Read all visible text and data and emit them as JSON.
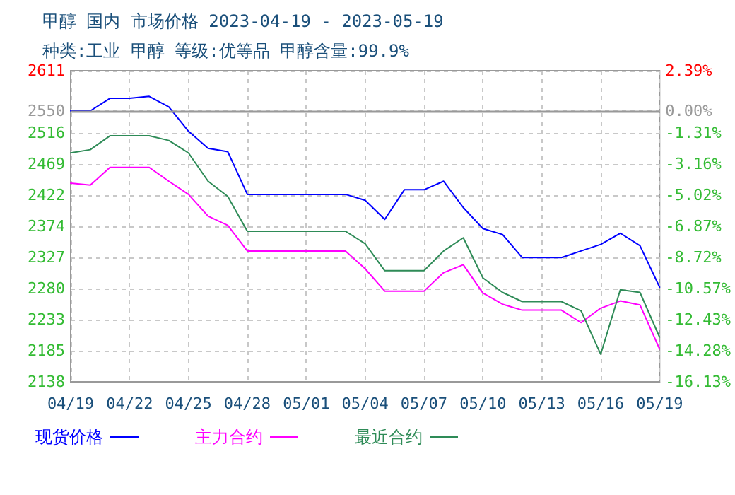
{
  "chart_data": {
    "type": "line",
    "title": "甲醇 国内 市场价格 2023-04-19 - 2023-05-19",
    "subtitle": "种类:工业 甲醇 等级:优等品 甲醇含量:99.9%",
    "x": [
      "2023-04-19",
      "2023-04-20",
      "2023-04-21",
      "2023-04-22",
      "2023-04-23",
      "2023-04-24",
      "2023-04-25",
      "2023-04-26",
      "2023-04-27",
      "2023-04-28",
      "2023-04-29",
      "2023-04-30",
      "2023-05-01",
      "2023-05-02",
      "2023-05-03",
      "2023-05-04",
      "2023-05-05",
      "2023-05-06",
      "2023-05-07",
      "2023-05-08",
      "2023-05-09",
      "2023-05-10",
      "2023-05-11",
      "2023-05-12",
      "2023-05-13",
      "2023-05-14",
      "2023-05-15",
      "2023-05-16",
      "2023-05-17",
      "2023-05-18",
      "2023-05-19"
    ],
    "series": [
      {
        "name": "现货价格",
        "color": "#0000ff",
        "values": [
          2550,
          2550,
          2569,
          2569,
          2572,
          2556,
          2519,
          2493,
          2488,
          2423,
          2423,
          2423,
          2423,
          2423,
          2423,
          2414,
          2385,
          2430,
          2430,
          2443,
          2403,
          2371,
          2362,
          2327,
          2327,
          2327,
          2337,
          2347,
          2364,
          2345,
          2282
        ]
      },
      {
        "name": "主力合约",
        "color": "#ff00ff",
        "values": [
          2440,
          2437,
          2464,
          2464,
          2464,
          2443,
          2423,
          2390,
          2376,
          2337,
          2337,
          2337,
          2337,
          2337,
          2337,
          2310,
          2276,
          2276,
          2276,
          2304,
          2316,
          2273,
          2256,
          2247,
          2247,
          2247,
          2228,
          2250,
          2261,
          2255,
          2188
        ]
      },
      {
        "name": "最近合约",
        "color": "#2e8b57",
        "values": [
          2486,
          2491,
          2512,
          2512,
          2512,
          2505,
          2486,
          2443,
          2420,
          2367,
          2367,
          2367,
          2367,
          2367,
          2367,
          2348,
          2307,
          2307,
          2307,
          2337,
          2357,
          2296,
          2274,
          2260,
          2260,
          2260,
          2246,
          2180,
          2278,
          2274,
          2206
        ]
      }
    ],
    "xlim": [
      "2023-04-19",
      "2023-05-19"
    ],
    "xticks": [
      {
        "value": "2023-04-19",
        "label": "04/19"
      },
      {
        "value": "2023-04-22",
        "label": "04/22"
      },
      {
        "value": "2023-04-25",
        "label": "04/25"
      },
      {
        "value": "2023-04-28",
        "label": "04/28"
      },
      {
        "value": "2023-05-01",
        "label": "05/01"
      },
      {
        "value": "2023-05-04",
        "label": "05/04"
      },
      {
        "value": "2023-05-07",
        "label": "05/07"
      },
      {
        "value": "2023-05-10",
        "label": "05/10"
      },
      {
        "value": "2023-05-13",
        "label": "05/13"
      },
      {
        "value": "2023-05-16",
        "label": "05/16"
      },
      {
        "value": "2023-05-19",
        "label": "05/19"
      }
    ],
    "ylim": [
      2138,
      2611
    ],
    "yticks": [
      2138,
      2185,
      2233,
      2280,
      2327,
      2374,
      2422,
      2469,
      2516,
      2550,
      2611
    ],
    "y2lim": [
      -16.13,
      2.39
    ],
    "y2ticks": [
      {
        "value": -16.13,
        "label": "-16.13%"
      },
      {
        "value": -14.28,
        "label": "-14.28%"
      },
      {
        "value": -12.43,
        "label": "-12.43%"
      },
      {
        "value": -10.57,
        "label": "-10.57%"
      },
      {
        "value": -8.72,
        "label": "-8.72%"
      },
      {
        "value": -6.87,
        "label": "-6.87%"
      },
      {
        "value": -5.02,
        "label": "-5.02%"
      },
      {
        "value": -3.16,
        "label": "-3.16%"
      },
      {
        "value": -1.31,
        "label": "-1.31%"
      },
      {
        "value": 0,
        "label": "0.00%"
      },
      {
        "value": 2.39,
        "label": "2.39%"
      }
    ],
    "ref_lines": [
      {
        "axis": "y",
        "value": 2550,
        "color": "#999999",
        "line_style": "solid"
      }
    ],
    "grid": true,
    "legend": "bottom",
    "marker": "none",
    "line_style": "solid"
  }
}
